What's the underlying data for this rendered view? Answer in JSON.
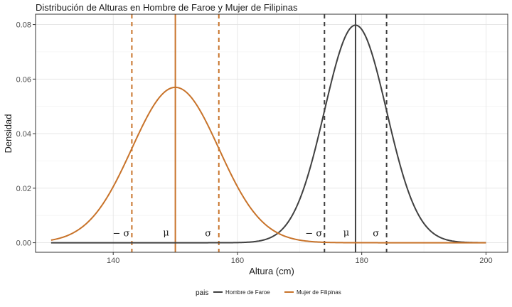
{
  "chart_data": {
    "type": "line",
    "title": "Distribución de Alturas en Hombre de Faroe y Mujer de Filipinas",
    "xlabel": "Altura (cm)",
    "ylabel": "Densidad",
    "xlim": [
      127.5,
      203.5
    ],
    "ylim": [
      -0.0035,
      0.0838
    ],
    "xticks": [
      140,
      160,
      180,
      200
    ],
    "yticks": [
      0.0,
      0.02,
      0.04,
      0.06,
      0.08
    ],
    "xtick_labels": [
      "140",
      "160",
      "180",
      "200"
    ],
    "ytick_labels": [
      "0.00",
      "0.02",
      "0.04",
      "0.06",
      "0.08"
    ],
    "grid": true,
    "legend_position": "bottom",
    "legend_title": "pais",
    "series": [
      {
        "name": "Hombre de Faroe",
        "color": "#404040",
        "mean": 179,
        "sd": 5,
        "x_range": [
          130,
          200
        ],
        "labels": {
          "minus_sigma": "− σ",
          "mu": "μ",
          "sigma": "σ"
        }
      },
      {
        "name": "Mujer de Filipinas",
        "color": "#c8732a",
        "mean": 150,
        "sd": 7,
        "x_range": [
          130,
          200
        ],
        "labels": {
          "minus_sigma": "− σ",
          "mu": "μ",
          "sigma": "σ"
        }
      }
    ]
  }
}
